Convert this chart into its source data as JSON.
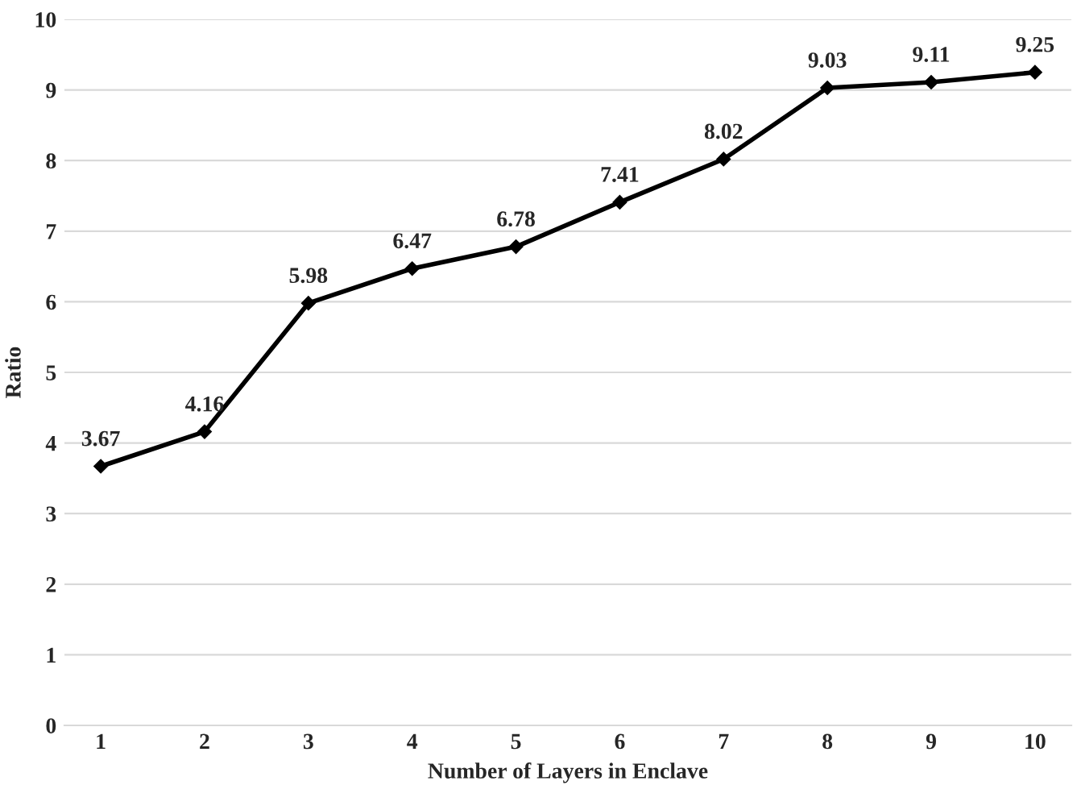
{
  "chart_data": {
    "type": "line",
    "xlabel": "Number of Layers in Enclave",
    "ylabel": "Ratio",
    "categories": [
      "1",
      "2",
      "3",
      "4",
      "5",
      "6",
      "7",
      "8",
      "9",
      "10"
    ],
    "series": [
      {
        "color": "#000000",
        "values": [
          3.67,
          4.16,
          5.98,
          6.47,
          6.78,
          7.41,
          8.02,
          9.03,
          9.11,
          9.25
        ]
      }
    ],
    "ylim": [
      0,
      10
    ],
    "yticks": [
      0,
      1,
      2,
      3,
      4,
      5,
      6,
      7,
      8,
      9,
      10
    ],
    "grid": "y",
    "data_labels": true,
    "marker": "diamond",
    "line_style": "solid"
  }
}
